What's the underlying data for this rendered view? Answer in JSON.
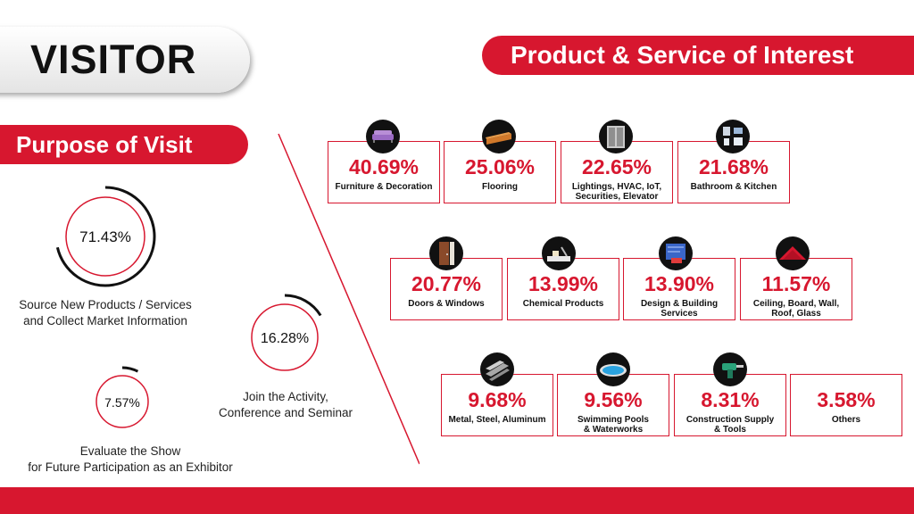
{
  "title": "VISITOR",
  "purpose_heading": "Purpose of Visit",
  "product_heading": "Product & Service of Interest",
  "purposes": [
    {
      "value": "71.43%",
      "fraction": 0.7143,
      "line1": "Source New Products / Services",
      "line2": "and Collect Market Information"
    },
    {
      "value": "16.28%",
      "fraction": 0.1628,
      "line1": "Join the Activity,",
      "line2": "Conference and Seminar"
    },
    {
      "value": "7.57%",
      "fraction": 0.0757,
      "line1": "Evaluate the Show",
      "line2": "for Future Participation as an Exhibitor"
    }
  ],
  "products": [
    {
      "value": "40.69%",
      "line1": "Furniture & Decoration",
      "line2": "",
      "icon": "sofa-icon"
    },
    {
      "value": "25.06%",
      "line1": "Flooring",
      "line2": "",
      "icon": "flooring-icon"
    },
    {
      "value": "22.65%",
      "line1": "Lightings, HVAC, IoT,",
      "line2": "Securities, Elevator",
      "icon": "elevator-icon"
    },
    {
      "value": "21.68%",
      "line1": "Bathroom & Kitchen",
      "line2": "",
      "icon": "bathroom-icon"
    },
    {
      "value": "20.77%",
      "line1": "Doors & Windows",
      "line2": "",
      "icon": "door-icon"
    },
    {
      "value": "13.99%",
      "line1": "Chemical Products",
      "line2": "",
      "icon": "chemical-icon"
    },
    {
      "value": "13.90%",
      "line1": "Design & Building",
      "line2": "Services",
      "icon": "blueprint-icon"
    },
    {
      "value": "11.57%",
      "line1": "Ceiling, Board, Wall,",
      "line2": "Roof, Glass",
      "icon": "roof-icon"
    },
    {
      "value": "9.68%",
      "line1": "Metal, Steel, Aluminum",
      "line2": "",
      "icon": "steel-beam-icon"
    },
    {
      "value": "9.56%",
      "line1": "Swimming Pools",
      "line2": "& Waterworks",
      "icon": "pool-icon"
    },
    {
      "value": "8.31%",
      "line1": "Construction Supply",
      "line2": "& Tools",
      "icon": "drill-icon"
    },
    {
      "value": "3.58%",
      "line1": "Others",
      "line2": "",
      "icon": ""
    }
  ],
  "chart_data": {
    "type": "bar",
    "title": "Product & Service of Interest",
    "categories": [
      "Furniture & Decoration",
      "Flooring",
      "Lightings, HVAC, IoT, Securities, Elevator",
      "Bathroom & Kitchen",
      "Doors & Windows",
      "Chemical Products",
      "Design & Building Services",
      "Ceiling, Board, Wall, Roof, Glass",
      "Metal, Steel, Aluminum",
      "Swimming Pools & Waterworks",
      "Construction Supply & Tools",
      "Others"
    ],
    "values": [
      40.69,
      25.06,
      22.65,
      21.68,
      20.77,
      13.99,
      13.9,
      11.57,
      9.68,
      9.56,
      8.31,
      3.58
    ],
    "unit": "%"
  },
  "colors": {
    "accent": "#d7172f",
    "dark": "#111111"
  }
}
